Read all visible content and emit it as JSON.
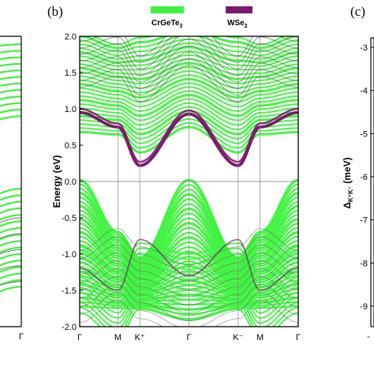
{
  "chart_data": [
    {
      "panel": "",
      "type": "line",
      "title": "",
      "xlabel": "",
      "ylabel": "",
      "x_ticks": [
        "Γ"
      ],
      "ylim": [
        -2.0,
        2.0
      ],
      "note": "partial panel (a), cropped on left edge"
    },
    {
      "panel": "(b)",
      "type": "line",
      "title": "",
      "xlabel": "",
      "ylabel": "Energy (eV)",
      "ylim": [
        -2.0,
        2.0
      ],
      "y_ticks": [
        -2.0,
        -1.5,
        -1.0,
        -0.5,
        0.0,
        0.5,
        1.0,
        1.5,
        2.0
      ],
      "x_ticks": [
        "Γ",
        "M",
        "K⁺",
        "Γ",
        "K⁻",
        "M",
        "Γ"
      ],
      "x_tick_positions": [
        0,
        0.35,
        0.55,
        1.0,
        1.45,
        1.65,
        2.0
      ],
      "legend": [
        {
          "name": "CrGeTe3",
          "color": "#3ff23f"
        },
        {
          "name": "WSe2",
          "color": "#7a1a6e"
        }
      ],
      "fermi_level": 0.0,
      "series": [
        {
          "name": "CrGeTe3",
          "color": "#3ff23f",
          "band_profiles": {
            "valence_top": [
              {
                "x": 0,
                "y": 0.02
              },
              {
                "x": 0.35,
                "y": -0.7
              },
              {
                "x": 0.55,
                "y": -1.05
              },
              {
                "x": 1.0,
                "y": 0.02
              },
              {
                "x": 1.45,
                "y": -1.05
              },
              {
                "x": 1.65,
                "y": -0.7
              },
              {
                "x": 2.0,
                "y": 0.02
              }
            ],
            "conduction_bottom": [
              {
                "x": 0,
                "y": 0.68
              },
              {
                "x": 0.35,
                "y": 0.65
              },
              {
                "x": 0.55,
                "y": 0.4
              },
              {
                "x": 1.0,
                "y": 0.75
              },
              {
                "x": 1.45,
                "y": 0.4
              },
              {
                "x": 1.65,
                "y": 0.65
              },
              {
                "x": 2.0,
                "y": 0.68
              }
            ]
          }
        },
        {
          "name": "WSe2",
          "color": "#7a1a6e",
          "band_profiles": {
            "conduction": [
              {
                "x": 0,
                "y": 0.95
              },
              {
                "x": 0.35,
                "y": 0.75
              },
              {
                "x": 0.55,
                "y": 0.22
              },
              {
                "x": 1.0,
                "y": 0.93
              },
              {
                "x": 1.45,
                "y": 0.22
              },
              {
                "x": 1.65,
                "y": 0.75
              },
              {
                "x": 2.0,
                "y": 0.95
              }
            ],
            "valence": [
              {
                "x": 0,
                "y": -1.2
              },
              {
                "x": 0.35,
                "y": -1.5
              },
              {
                "x": 0.55,
                "y": -0.8
              },
              {
                "x": 1.0,
                "y": -1.3
              },
              {
                "x": 1.45,
                "y": -0.8
              },
              {
                "x": 1.65,
                "y": -1.5
              },
              {
                "x": 2.0,
                "y": -1.2
              }
            ]
          }
        }
      ]
    },
    {
      "panel": "(c)",
      "type": "line",
      "title": "",
      "xlabel": "",
      "ylabel": "Δ_K⁺K⁻ (meV)",
      "y_ticks": [
        -3,
        -4,
        -5,
        -6,
        -7,
        -8,
        -9
      ],
      "note": "partial panel, cropped on right edge"
    }
  ],
  "labels": {
    "panel_b": "(b)",
    "panel_c": "(c)",
    "legend_cr_main": "CrGeTe",
    "legend_cr_sub": "3",
    "legend_w_main": "WSe",
    "legend_w_sub": "2",
    "ylabel_b": "Energy (eV)",
    "ylabel_c_main": "Δ",
    "ylabel_c_sub": "K⁺K⁻",
    "ylabel_c_unit": " (meV)",
    "x_tick_c_partial": "-"
  },
  "colors": {
    "cr_band": "#3ff23f",
    "w_band": "#7a1a6e",
    "gray_band": "#5a6b5a",
    "axis": "#000000",
    "fermi_line": "#777777"
  }
}
